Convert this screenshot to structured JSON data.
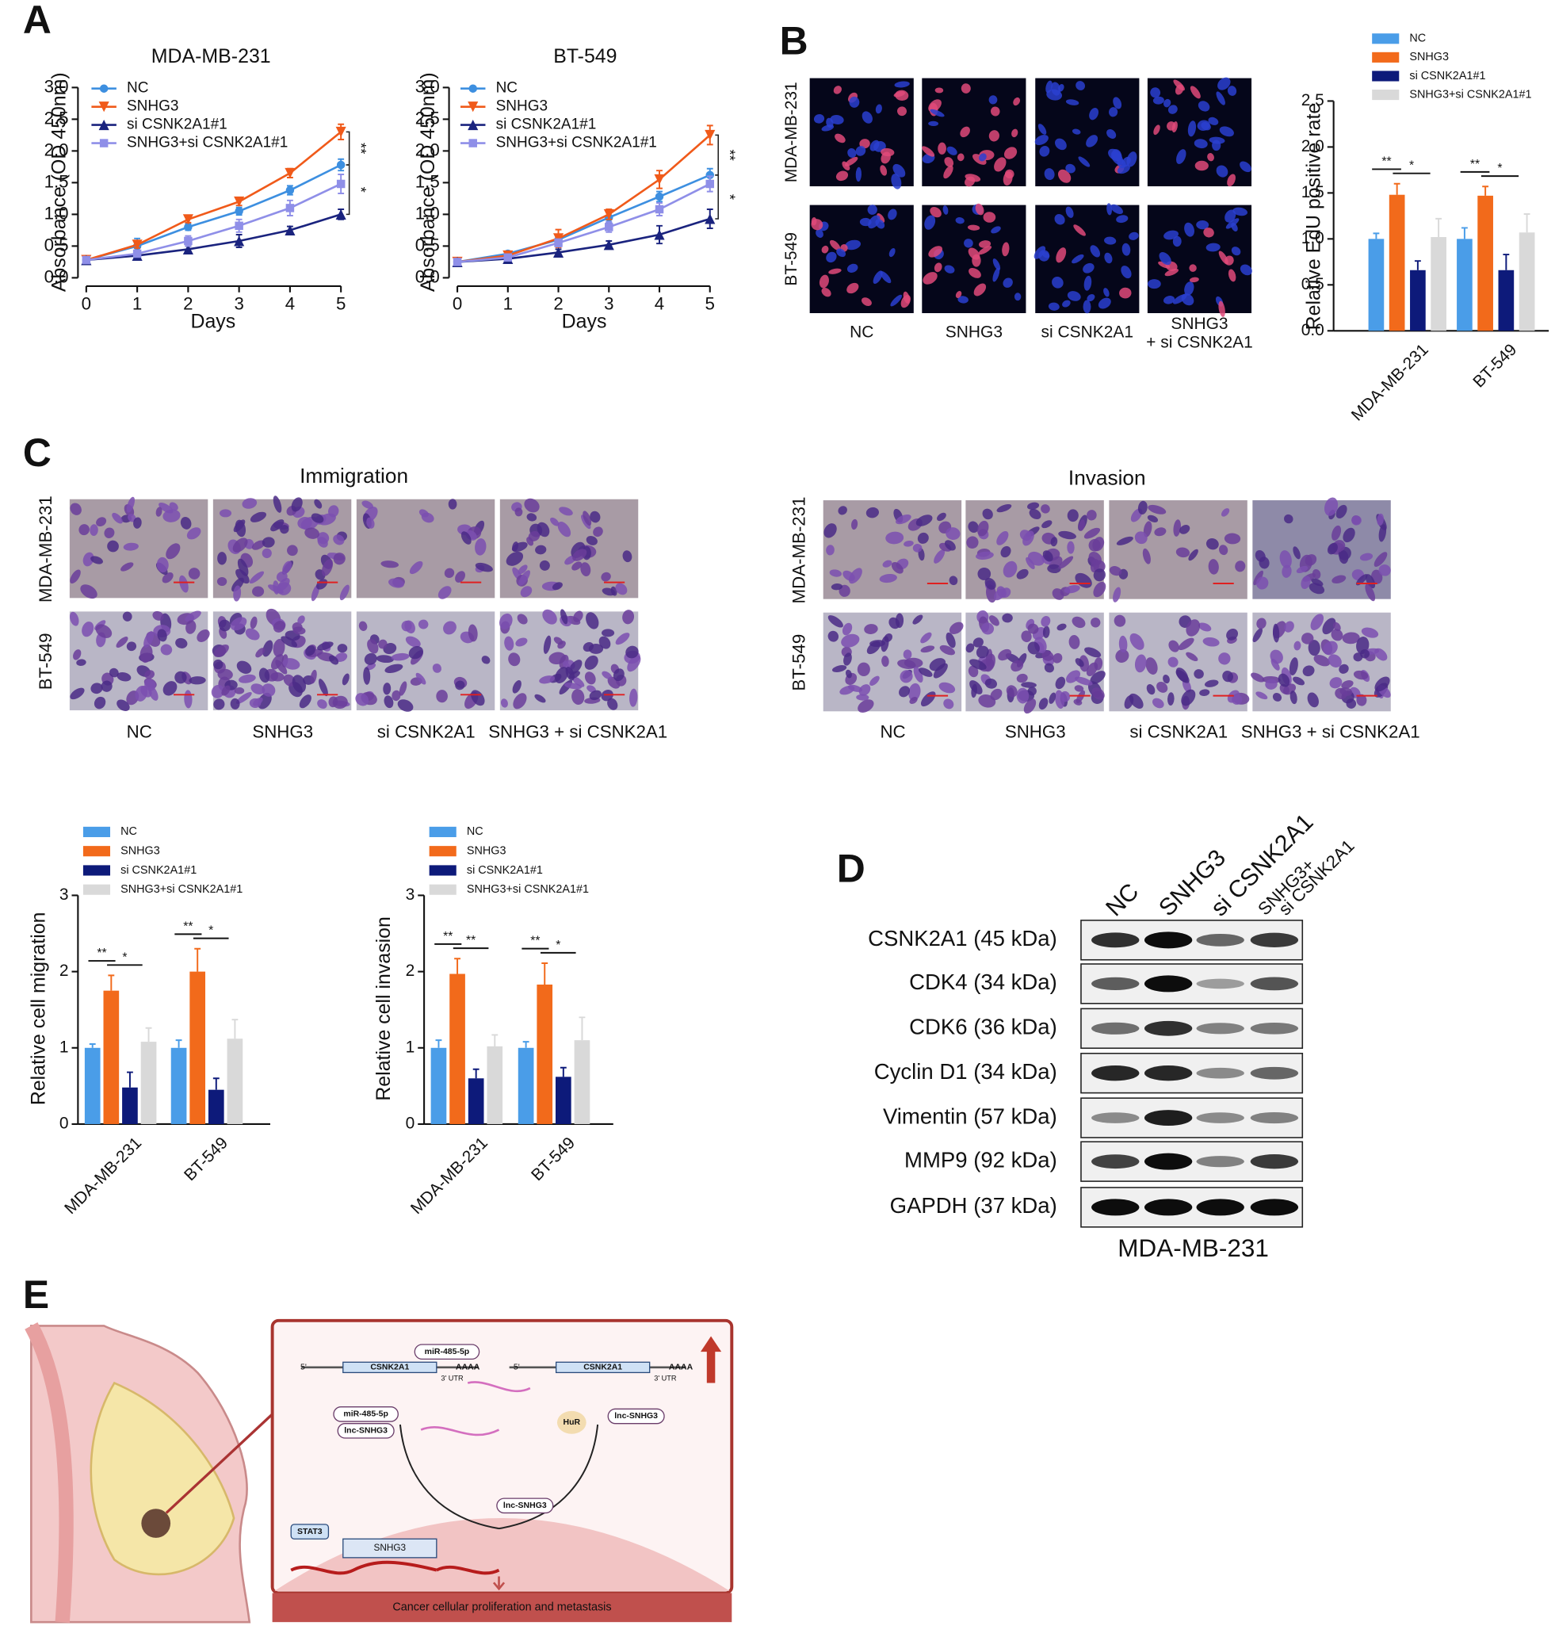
{
  "chart_data": [
    {
      "type": "line",
      "title": "MDA-MB-231",
      "x_label": "Days",
      "y_label": "Absorbance (OD 450nm)",
      "x": [
        0,
        1,
        2,
        3,
        4,
        5
      ],
      "xlim": [
        0,
        5
      ],
      "xticks": [
        0,
        1,
        2,
        3,
        4,
        5
      ],
      "ylim": [
        0,
        3
      ],
      "yticks": [
        {
          "value": 0,
          "label": "0.0"
        },
        0.5,
        {
          "value": 1,
          "label": "1.0"
        },
        1.5,
        {
          "value": 2,
          "label": "2.0"
        },
        2.5,
        {
          "value": 3,
          "label": "3.0"
        }
      ],
      "series": [
        {
          "name": "NC",
          "color": "#3d8fe0",
          "values": [
            0.28,
            0.5,
            0.8,
            1.05,
            1.38,
            1.78
          ],
          "errors": [
            0.03,
            0.12,
            0.05,
            0.06,
            0.07,
            0.09
          ]
        },
        {
          "name": "SNHG3",
          "color": "#f05a1a",
          "values": [
            0.28,
            0.52,
            0.92,
            1.2,
            1.65,
            2.3
          ],
          "errors": [
            0.03,
            0.05,
            0.05,
            0.06,
            0.07,
            0.12
          ]
        },
        {
          "name": "si CSNK2A1#1",
          "color": "#1a237e",
          "values": [
            0.28,
            0.35,
            0.45,
            0.58,
            0.75,
            1.0
          ],
          "errors": [
            0.03,
            0.04,
            0.05,
            0.1,
            0.06,
            0.08
          ]
        },
        {
          "name": "SNHG3+si CSNK2A1#1",
          "color": "#8f8fe8",
          "values": [
            0.28,
            0.38,
            0.58,
            0.82,
            1.1,
            1.48
          ],
          "errors": [
            0.03,
            0.05,
            0.08,
            0.1,
            0.12,
            0.15
          ]
        }
      ],
      "annotations": [
        "**",
        "*"
      ]
    },
    {
      "type": "line",
      "title": "BT-549",
      "x_label": "Days",
      "y_label": "Absorbance (OD 450nm)",
      "x": [
        0,
        1,
        2,
        3,
        4,
        5
      ],
      "xlim": [
        0,
        5
      ],
      "xticks": [
        0,
        1,
        2,
        3,
        4,
        5
      ],
      "ylim": [
        0,
        3
      ],
      "yticks": [
        {
          "value": 0,
          "label": "0.0"
        },
        0.5,
        {
          "value": 1,
          "label": "1.0"
        },
        1.5,
        {
          "value": 2,
          "label": "2.0"
        },
        2.5,
        {
          "value": 3,
          "label": "3.0"
        }
      ],
      "series": [
        {
          "name": "NC",
          "color": "#3d8fe0",
          "values": [
            0.25,
            0.38,
            0.6,
            0.95,
            1.28,
            1.62
          ],
          "errors": [
            0.03,
            0.04,
            0.06,
            0.08,
            0.08,
            0.1
          ]
        },
        {
          "name": "SNHG3",
          "color": "#f05a1a",
          "values": [
            0.25,
            0.35,
            0.62,
            1.0,
            1.55,
            2.25
          ],
          "errors": [
            0.03,
            0.04,
            0.14,
            0.08,
            0.14,
            0.15
          ]
        },
        {
          "name": "si CSNK2A1#1",
          "color": "#1a237e",
          "values": [
            0.25,
            0.3,
            0.4,
            0.52,
            0.68,
            0.93
          ],
          "errors": [
            0.03,
            0.04,
            0.05,
            0.06,
            0.14,
            0.15
          ]
        },
        {
          "name": "SNHG3+si CSNK2A1#1",
          "color": "#8f8fe8",
          "values": [
            0.25,
            0.32,
            0.55,
            0.8,
            1.08,
            1.48
          ],
          "errors": [
            0.03,
            0.04,
            0.06,
            0.08,
            0.1,
            0.12
          ]
        }
      ],
      "annotations": [
        "**",
        "*"
      ]
    },
    {
      "type": "bar",
      "y_label": "Relative EdU positive rate",
      "categories": [
        "MDA-MB-231",
        "BT-549"
      ],
      "ylim": [
        0,
        2.5
      ],
      "yticks": [
        {
          "value": 0,
          "label": "0.0"
        },
        0.5,
        {
          "value": 1,
          "label": "1.0"
        },
        1.5,
        {
          "value": 2,
          "label": "2.0"
        },
        2.5
      ],
      "series": [
        {
          "name": "NC",
          "color": "#4a9de8",
          "values": [
            1.0,
            1.0
          ],
          "errors": [
            0.06,
            0.12
          ]
        },
        {
          "name": "SNHG3",
          "color": "#f26a1b",
          "values": [
            1.48,
            1.47
          ],
          "errors": [
            0.12,
            0.1
          ]
        },
        {
          "name": "si CSNK2A1#1",
          "color": "#0d1a7a",
          "values": [
            0.66,
            0.66
          ],
          "errors": [
            0.1,
            0.17
          ]
        },
        {
          "name": "SNHG3+si CSNK2A1#1",
          "color": "#d9d9d9",
          "values": [
            1.02,
            1.07
          ],
          "errors": [
            0.2,
            0.2
          ]
        }
      ],
      "annotations": [
        "**",
        "*",
        "**",
        "*"
      ]
    },
    {
      "type": "bar",
      "y_label": "Relative cell migration",
      "categories": [
        "MDA-MB-231",
        "BT-549"
      ],
      "ylim": [
        0,
        3
      ],
      "yticks": [
        0,
        1,
        2,
        3
      ],
      "series": [
        {
          "name": "NC",
          "color": "#4a9de8",
          "values": [
            1.0,
            1.0
          ],
          "errors": [
            0.05,
            0.1
          ]
        },
        {
          "name": "SNHG3",
          "color": "#f26a1b",
          "values": [
            1.75,
            2.0
          ],
          "errors": [
            0.2,
            0.3
          ]
        },
        {
          "name": "si CSNK2A1#1",
          "color": "#0d1a7a",
          "values": [
            0.48,
            0.45
          ],
          "errors": [
            0.2,
            0.15
          ]
        },
        {
          "name": "SNHG3+si CSNK2A1#1",
          "color": "#d9d9d9",
          "values": [
            1.08,
            1.12
          ],
          "errors": [
            0.18,
            0.25
          ]
        }
      ],
      "annotations": [
        "**",
        "*",
        "**",
        "*"
      ]
    },
    {
      "type": "bar",
      "y_label": "Relative cell invasion",
      "categories": [
        "MDA-MB-231",
        "BT-549"
      ],
      "ylim": [
        0,
        3
      ],
      "yticks": [
        0,
        1,
        2,
        3
      ],
      "series": [
        {
          "name": "NC",
          "color": "#4a9de8",
          "values": [
            1.0,
            1.0
          ],
          "errors": [
            0.1,
            0.08
          ]
        },
        {
          "name": "SNHG3",
          "color": "#f26a1b",
          "values": [
            1.97,
            1.83
          ],
          "errors": [
            0.2,
            0.28
          ]
        },
        {
          "name": "si CSNK2A1#1",
          "color": "#0d1a7a",
          "values": [
            0.6,
            0.62
          ],
          "errors": [
            0.12,
            0.12
          ]
        },
        {
          "name": "SNHG3+si CSNK2A1#1",
          "color": "#d9d9d9",
          "values": [
            1.02,
            1.1
          ],
          "errors": [
            0.15,
            0.3
          ]
        }
      ],
      "annotations": [
        "**",
        "**",
        "**",
        "*"
      ]
    }
  ],
  "panels": {
    "A": "A",
    "B": "B",
    "C": "C",
    "D": "D",
    "E": "E"
  },
  "edu_images": {
    "rows": [
      "MDA-MB-231",
      "BT-549"
    ],
    "columns": [
      [
        "NC"
      ],
      [
        "SNHG3"
      ],
      [
        "si CSNK2A1"
      ],
      [
        "SNHG3",
        "+ si CSNK2A1"
      ]
    ]
  },
  "transwell": {
    "titles": [
      "Immigration",
      "Invasion"
    ],
    "rows": [
      "MDA-MB-231",
      "BT-549"
    ],
    "columns": [
      "NC",
      "SNHG3",
      "si CSNK2A1",
      "SNHG3 + si CSNK2A1"
    ]
  },
  "western_blot": {
    "lanes": [
      [
        "NC"
      ],
      [
        "SNHG3"
      ],
      [
        "si CSNK2A1"
      ],
      [
        "SNHG3+",
        "si CSNK2A1"
      ]
    ],
    "bands": [
      "CSNK2A1 (45 kDa)",
      "CDK4 (34 kDa)",
      "CDK6 (36 kDa)",
      "Cyclin D1 (34 kDa)",
      "Vimentin (57 kDa)",
      "MMP9 (92 kDa)",
      "GAPDH (37 kDa)"
    ],
    "cell_line": "MDA-MB-231"
  },
  "diagram": {
    "mirna": "miR-485-5p",
    "gene": "CSNK2A1",
    "utr": "3' UTR",
    "polya": "AAAA",
    "five_prime": "5'",
    "lnc": "lnc-SNHG3",
    "hur": "HuR",
    "stat3": "STAT3",
    "snhg3": "SNHG3",
    "outcome": "Cancer cellular proliferation and metastasis"
  }
}
